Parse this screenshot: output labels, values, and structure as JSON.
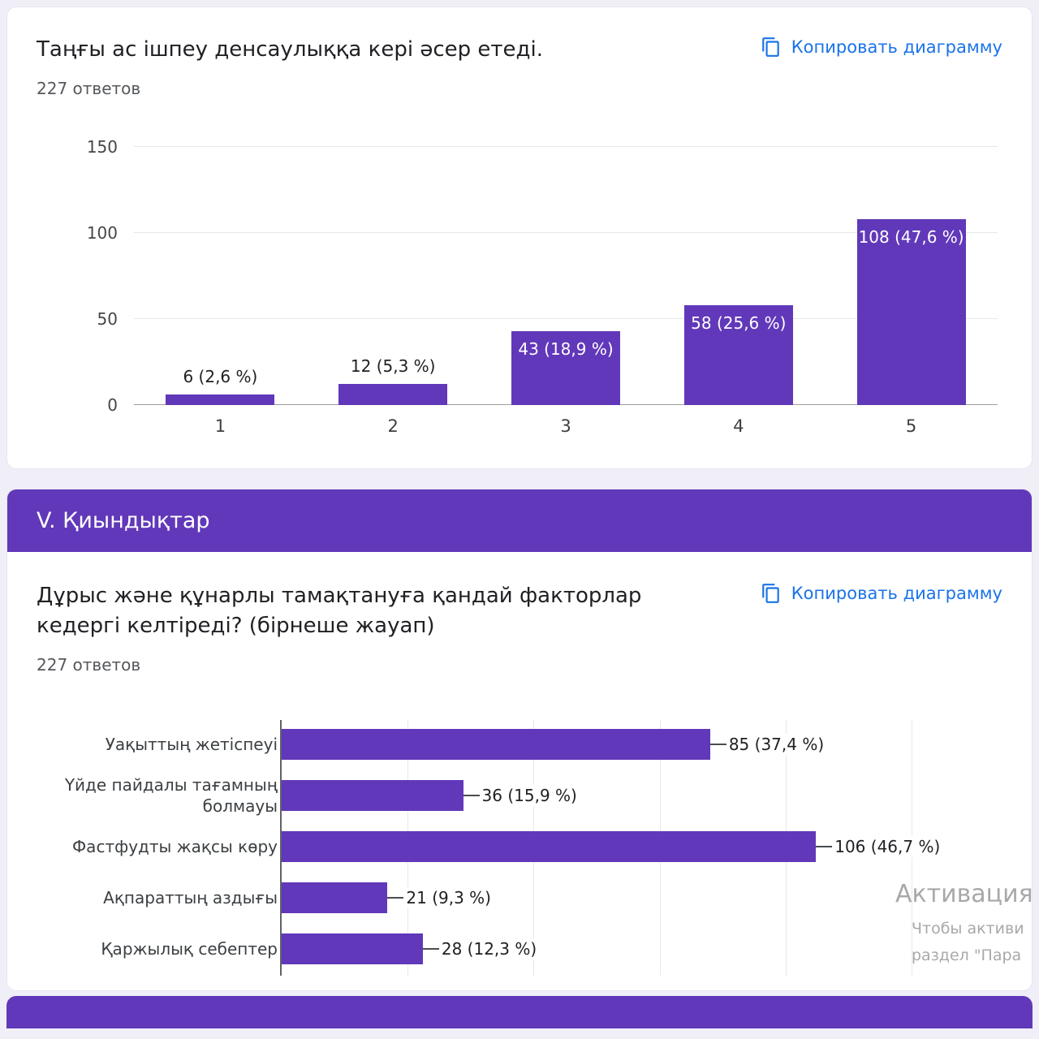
{
  "page": {
    "background": "#f0eff7",
    "accent_purple": "#6138b9",
    "link_blue": "#1a73e8"
  },
  "card1": {
    "title": "Таңғы ас ішпеу денсаулыққа кері әсер етеді.",
    "responses": "227 ответов",
    "copy_label": "Копировать диаграмму"
  },
  "section": {
    "title": "V. Қиындықтар"
  },
  "card2": {
    "title": "Дұрыс және құнарлы тамақтануға қандай факторлар кедергі келтіреді? (бірнеше жауап)",
    "responses": "227 ответов",
    "copy_label": "Копировать диаграмму"
  },
  "watermark": {
    "lines": [
      "Активация",
      "Чтобы активи",
      "раздел \"Пара"
    ]
  },
  "chart_data": [
    {
      "type": "bar",
      "orientation": "vertical",
      "title": "Таңғы ас ішпеу денсаулыққа кері әсер етеді.",
      "subtitle": "227 ответов",
      "categories": [
        "1",
        "2",
        "3",
        "4",
        "5"
      ],
      "values": [
        6,
        12,
        43,
        58,
        108
      ],
      "labels": [
        "6 (2,6 %)",
        "12 (5,3 %)",
        "43 (18,9 %)",
        "58 (25,6 %)",
        "108 (47,6 %)"
      ],
      "ylim": [
        0,
        150
      ],
      "yticks": [
        0,
        50,
        100,
        150
      ],
      "grid": true,
      "legend": "none",
      "bar_color": "#6138b9"
    },
    {
      "type": "bar",
      "orientation": "horizontal",
      "title": "Дұрыс және құнарлы тамақтануға қандай факторлар кедергі келтіреді? (бірнеше жауап)",
      "subtitle": "227 ответов",
      "categories": [
        "Уақыттың жетіспеуі",
        "Үйде пайдалы тағамның болмауы",
        "Фастфудты жақсы көру",
        "Ақпараттың аздығы",
        "Қаржылық себептер"
      ],
      "values": [
        85,
        36,
        106,
        21,
        28
      ],
      "labels": [
        "85 (37,4 %)",
        "36 (15,9 %)",
        "106 (46,7 %)",
        "21 (9,3 %)",
        "28 (12,3 %)"
      ],
      "xlim": [
        0,
        143
      ],
      "gridlines": [
        25,
        50,
        75,
        100,
        125
      ],
      "grid": true,
      "legend": "none",
      "bar_color": "#6138b9"
    }
  ]
}
